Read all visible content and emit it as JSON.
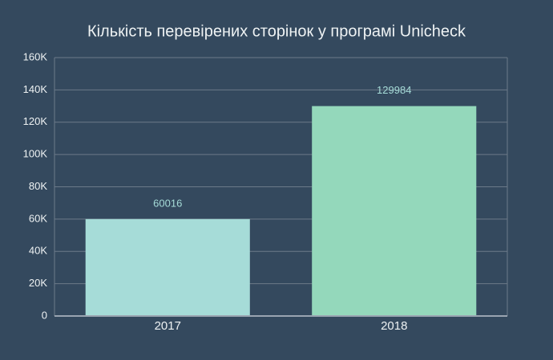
{
  "chart_data": {
    "type": "bar",
    "title": "Кількість перевірених сторінок у програмі Unicheck",
    "categories": [
      "2017",
      "2018"
    ],
    "values": [
      60016,
      129984
    ],
    "colors": [
      "#a6dcd8",
      "#94d8bb"
    ],
    "ylim": [
      0,
      160000
    ],
    "yticks": [
      0,
      {
        "value": 20000,
        "label": "20K"
      },
      {
        "value": 40000,
        "label": "40K"
      },
      {
        "value": 60000,
        "label": "60K"
      },
      {
        "value": 80000,
        "label": "80K"
      },
      {
        "value": 100000,
        "label": "100K"
      },
      {
        "value": 120000,
        "label": "120K"
      },
      {
        "value": 140000,
        "label": "140K"
      },
      {
        "value": 160000,
        "label": "160K"
      }
    ],
    "grid": true
  }
}
